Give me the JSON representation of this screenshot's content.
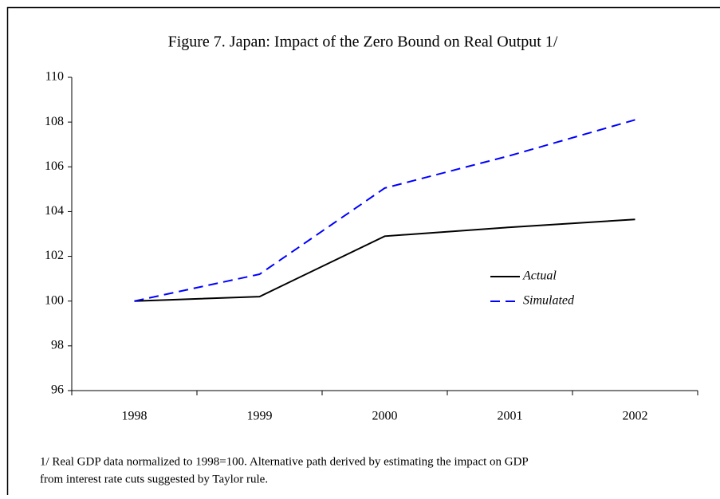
{
  "chart_data": {
    "type": "line",
    "title": "Figure 7. Japan: Impact of the Zero Bound on Real Output 1/",
    "categories": [
      "1998",
      "1999",
      "2000",
      "2001",
      "2002"
    ],
    "series": [
      {
        "name": "Actual",
        "color": "#000000",
        "dash": false,
        "values": [
          100,
          100.2,
          102.9,
          103.3,
          103.65
        ]
      },
      {
        "name": "Simulated",
        "color": "#0000ff",
        "dash": true,
        "values": [
          100,
          101.2,
          105.05,
          106.5,
          108.1
        ]
      }
    ],
    "ylim": [
      96,
      110
    ],
    "yticks": [
      96,
      98,
      100,
      102,
      104,
      106,
      108,
      110
    ],
    "grid": false,
    "note": [
      "1/ Real GDP data normalized to 1998=100. Alternative path derived by estimating the impact on GDP",
      "from interest rate cuts suggested by Taylor rule."
    ]
  }
}
